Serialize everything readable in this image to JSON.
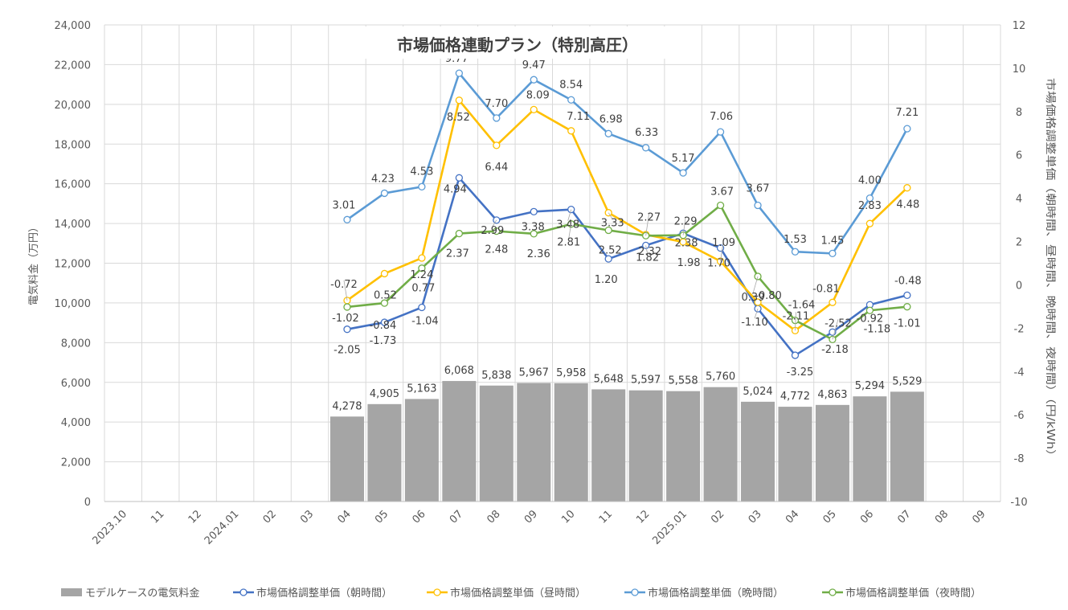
{
  "chart_data": {
    "type": "bar+line",
    "title": "市場価格連動プラン（特別高圧）",
    "categories": [
      "2023.10",
      "11",
      "12",
      "2024.01",
      "02",
      "03",
      "04",
      "05",
      "06",
      "07",
      "08",
      "09",
      "10",
      "11",
      "12",
      "2025.01",
      "02",
      "03",
      "04",
      "05",
      "06",
      "07",
      "08",
      "09"
    ],
    "y_left": {
      "label": "電気料金（万円）",
      "min": 0,
      "max": 24000,
      "step": 2000,
      "ticks": [
        "0",
        "2,000",
        "4,000",
        "6,000",
        "8,000",
        "10,000",
        "12,000",
        "14,000",
        "16,000",
        "18,000",
        "20,000",
        "22,000",
        "24,000"
      ]
    },
    "y_right": {
      "label": "市場価格調整単価（朝時間、昼時間、晩時間、夜時間）（円/kWh）",
      "min": -10,
      "max": 12,
      "step": 2,
      "ticks": [
        "-10",
        "-8",
        "-6",
        "-4",
        "-2",
        "0",
        "2",
        "4",
        "6",
        "8",
        "10",
        "12"
      ]
    },
    "series": [
      {
        "name": "モデルケースの電気料金",
        "type": "bar",
        "axis": "left",
        "color": "#a5a5a5",
        "values": [
          null,
          null,
          null,
          null,
          null,
          null,
          4278,
          4905,
          5163,
          6068,
          5838,
          5967,
          5958,
          5648,
          5597,
          5558,
          5760,
          5024,
          4772,
          4863,
          5294,
          5529,
          null,
          null
        ],
        "labels": [
          "",
          "",
          "",
          "",
          "",
          "",
          "4,278",
          "4,905",
          "5,163",
          "6,068",
          "5,838",
          "5,967",
          "5,958",
          "5,648",
          "5,597",
          "5,558",
          "5,760",
          "5,024",
          "4,772",
          "4,863",
          "5,294",
          "5,529",
          "",
          ""
        ]
      },
      {
        "name": "市場価格調整単価（朝時間）",
        "type": "line",
        "axis": "right",
        "color": "#4472c4",
        "values": [
          null,
          null,
          null,
          null,
          null,
          null,
          -2.05,
          -1.73,
          -1.04,
          4.94,
          2.99,
          3.38,
          3.48,
          1.2,
          1.82,
          2.38,
          1.7,
          -1.1,
          -3.25,
          -2.18,
          -0.92,
          -0.48,
          null,
          null
        ],
        "labels": [
          "",
          "",
          "",
          "",
          "",
          "",
          "-2.05",
          "-1.73",
          "-1.04",
          "4.94",
          "2.99",
          "3.38",
          "3.48",
          "1.20",
          "1.82",
          "2.38",
          "1.70",
          "-1.10",
          "-3.25",
          "-2.18",
          "-0.92",
          "-0.48",
          "",
          ""
        ]
      },
      {
        "name": "市場価格調整単価（昼時間）",
        "type": "line",
        "axis": "right",
        "color": "#ffc000",
        "values": [
          null,
          null,
          null,
          null,
          null,
          null,
          -0.72,
          0.52,
          1.24,
          8.52,
          6.44,
          8.09,
          7.11,
          3.33,
          2.32,
          1.98,
          1.09,
          -0.8,
          -2.11,
          -0.81,
          2.83,
          4.48,
          null,
          null
        ],
        "labels": [
          "",
          "",
          "",
          "",
          "",
          "",
          "-0.72",
          "0.52",
          "1.24",
          "8.52",
          "6.44",
          "8.09",
          "7.11",
          "3.33",
          "2.32",
          "1.98",
          "1.09",
          "-0.80",
          "-2.11",
          "-0.81",
          "2.83",
          "4.48",
          "",
          ""
        ]
      },
      {
        "name": "市場価格調整単価（晩時間）",
        "type": "line",
        "axis": "right",
        "color": "#5b9bd5",
        "values": [
          null,
          null,
          null,
          null,
          null,
          null,
          3.01,
          4.23,
          4.53,
          9.77,
          7.7,
          9.47,
          8.54,
          6.98,
          6.33,
          5.17,
          7.06,
          3.67,
          1.53,
          1.45,
          4.0,
          7.21,
          null,
          null
        ],
        "labels": [
          "",
          "",
          "",
          "",
          "",
          "",
          "3.01",
          "4.23",
          "4.53",
          "9.77",
          "7.70",
          "9.47",
          "8.54",
          "6.98",
          "6.33",
          "5.17",
          "7.06",
          "3.67",
          "1.53",
          "1.45",
          "4.00",
          "7.21",
          "",
          ""
        ]
      },
      {
        "name": "市場価格調整単価（夜時間）",
        "type": "line",
        "axis": "right",
        "color": "#70ad47",
        "values": [
          null,
          null,
          null,
          null,
          null,
          null,
          -1.02,
          -0.84,
          0.77,
          2.37,
          2.48,
          2.36,
          2.81,
          2.52,
          2.27,
          2.29,
          3.67,
          0.39,
          -1.64,
          -2.52,
          -1.18,
          -1.01,
          null,
          null
        ],
        "labels": [
          "",
          "",
          "",
          "",
          "",
          "",
          "-1.02",
          "-0.84",
          "0.77",
          "2.37",
          "2.48",
          "2.36",
          "2.81",
          "2.52",
          "2.27",
          "2.29",
          "3.67",
          "0.39",
          "-1.64",
          "-2.52",
          "-1.18",
          "-1.01",
          "",
          ""
        ]
      }
    ],
    "grid": true,
    "legend_position": "bottom"
  }
}
